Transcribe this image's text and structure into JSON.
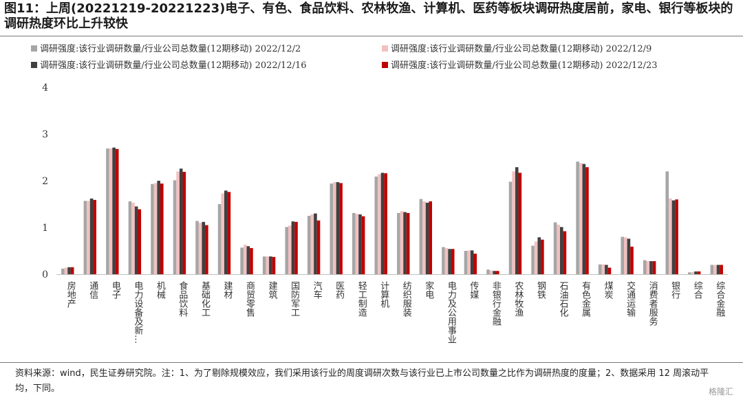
{
  "title": "图11：上周(20221219-20221223)电子、有色、食品饮料、农林牧渔、计算机、医药等板块调研热度居前，家电、银行等板块的调研热度环比上升较快",
  "source": "资料来源：wind，民生证券研究院。注：1、为了剔除规模效应，我们采用该行业的周度调研次数与该行业已上市公司数量之比作为调研热度的度量；2、数据采用 12 周滚动平均，下同。",
  "watermark": "格隆汇",
  "chart_data": {
    "type": "bar",
    "ylim": [
      0,
      4
    ],
    "yticks": [
      0,
      1,
      2,
      3,
      4
    ],
    "legend_position": "top",
    "categories": [
      "房地产",
      "通信",
      "电子",
      "电力设备及新…",
      "机械",
      "食品饮料",
      "基础化工",
      "建材",
      "商贸零售",
      "建筑",
      "国防军工",
      "汽车",
      "医药",
      "轻工制造",
      "计算机",
      "纺织服装",
      "家电",
      "电力及公用事业",
      "传媒",
      "非银行金融",
      "农林牧渔",
      "钢铁",
      "石油石化",
      "有色金属",
      "煤炭",
      "交通运输",
      "消费者服务",
      "银行",
      "综合",
      "综合金融"
    ],
    "series": [
      {
        "name": "调研强度:该行业调研数量/行业公司总数量(12期移动) 2022/12/2",
        "color": "#a6a6a6",
        "values": [
          0.12,
          1.57,
          2.69,
          1.56,
          1.93,
          2.01,
          1.14,
          1.5,
          0.57,
          0.38,
          1.01,
          1.25,
          1.94,
          1.31,
          2.09,
          1.31,
          1.61,
          0.58,
          0.5,
          0.1,
          1.98,
          0.61,
          1.11,
          2.41,
          0.21,
          0.8,
          0.3,
          2.2,
          0.04,
          0.2
        ]
      },
      {
        "name": "调研强度:该行业调研数量/行业公司总数量(12期移动) 2022/12/9",
        "color": "#f2c0c0",
        "values": [
          0.14,
          1.57,
          2.69,
          1.53,
          1.95,
          2.2,
          1.1,
          1.73,
          0.63,
          0.38,
          1.04,
          1.28,
          1.97,
          1.29,
          2.14,
          1.35,
          1.56,
          0.56,
          0.51,
          0.08,
          2.2,
          0.7,
          1.06,
          2.38,
          0.21,
          0.79,
          0.28,
          1.62,
          0.05,
          0.2
        ]
      },
      {
        "name": "调研强度:该行业调研数量/行业公司总数量(12期移动) 2022/12/16",
        "color": "#404040",
        "values": [
          0.15,
          1.62,
          2.71,
          1.45,
          2.0,
          2.26,
          1.12,
          1.79,
          0.6,
          0.38,
          1.13,
          1.3,
          1.97,
          1.28,
          2.17,
          1.33,
          1.53,
          0.54,
          0.51,
          0.07,
          2.29,
          0.79,
          1.01,
          2.36,
          0.2,
          0.76,
          0.28,
          1.58,
          0.06,
          0.2
        ]
      },
      {
        "name": "调研强度:该行业调研数量/行业公司总数量(12期移动) 2022/12/23",
        "color": "#c00000",
        "values": [
          0.15,
          1.59,
          2.68,
          1.39,
          1.94,
          2.19,
          1.05,
          1.76,
          0.56,
          0.37,
          1.12,
          1.15,
          1.95,
          1.24,
          2.16,
          1.31,
          1.56,
          0.54,
          0.44,
          0.07,
          2.17,
          0.74,
          0.92,
          2.29,
          0.14,
          0.59,
          0.28,
          1.6,
          0.06,
          0.2
        ]
      }
    ]
  }
}
